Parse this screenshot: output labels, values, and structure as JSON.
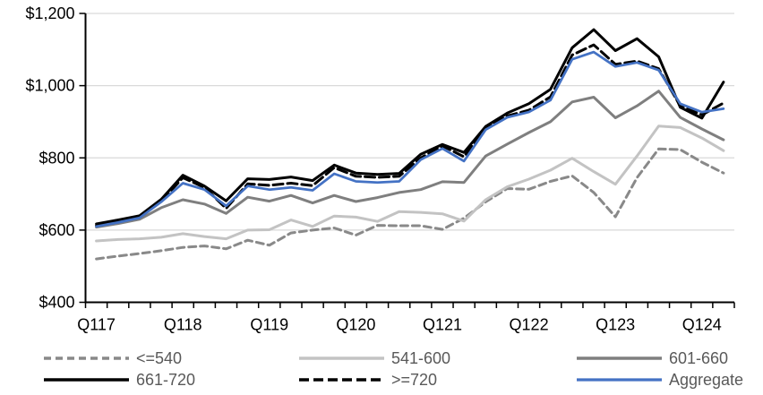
{
  "chart_data": {
    "type": "line",
    "title": "",
    "n_points": 30,
    "x_labels": [
      "Q117",
      "Q118",
      "Q119",
      "Q120",
      "Q121",
      "Q122",
      "Q123",
      "Q124"
    ],
    "x_label_positions": [
      0,
      4,
      8,
      12,
      16,
      20,
      24,
      28
    ],
    "x_note": "quarterly points, Q1 2017 through Q2 2024, labeled every 4th quarter",
    "y_axis": {
      "min": 400,
      "max": 1200,
      "step": 200,
      "tick_labels": [
        "$400",
        "$600",
        "$800",
        "$1,000",
        "$1,200"
      ]
    },
    "grid": "horizontal-only",
    "legend_position": "bottom",
    "series": [
      {
        "name": "<=540",
        "color": "#898989",
        "dash": "8 5",
        "width": 3,
        "values": [
          520,
          528,
          535,
          543,
          552,
          556,
          548,
          572,
          558,
          592,
          600,
          606,
          586,
          613,
          612,
          612,
          602,
          633,
          678,
          715,
          713,
          735,
          750,
          704,
          637,
          745,
          825,
          823,
          788,
          758
        ]
      },
      {
        "name": "541-600",
        "color": "#C3C3C3",
        "dash": null,
        "width": 3,
        "values": [
          570,
          574,
          576,
          580,
          590,
          582,
          576,
          600,
          601,
          628,
          610,
          639,
          636,
          624,
          651,
          649,
          645,
          625,
          684,
          720,
          741,
          766,
          799,
          762,
          727,
          805,
          888,
          884,
          855,
          820
        ]
      },
      {
        "name": "601-660",
        "color": "#7F7F7F",
        "dash": null,
        "width": 3,
        "values": [
          608,
          618,
          630,
          662,
          684,
          672,
          646,
          691,
          680,
          696,
          675,
          696,
          679,
          690,
          704,
          712,
          734,
          732,
          805,
          838,
          870,
          900,
          955,
          968,
          911,
          944,
          985,
          912,
          880,
          850
        ]
      },
      {
        "name": "661-720",
        "color": "#000000",
        "dash": null,
        "width": 3,
        "values": [
          617,
          628,
          640,
          685,
          752,
          722,
          681,
          742,
          740,
          747,
          737,
          780,
          758,
          754,
          757,
          810,
          837,
          815,
          887,
          924,
          950,
          990,
          1105,
          1155,
          1097,
          1130,
          1080,
          940,
          910,
          1010
        ]
      },
      {
        "name": ">=720",
        "color": "#000000",
        "dash": "11 5",
        "width": 3,
        "values": [
          612,
          624,
          636,
          680,
          745,
          718,
          660,
          728,
          724,
          730,
          723,
          773,
          749,
          746,
          749,
          800,
          833,
          803,
          883,
          916,
          932,
          969,
          1085,
          1113,
          1059,
          1068,
          1047,
          944,
          919,
          952
        ]
      },
      {
        "name": "Aggregate",
        "color": "#4472C4",
        "dash": null,
        "width": 2.75,
        "values": [
          610,
          621,
          634,
          678,
          730,
          712,
          667,
          722,
          712,
          718,
          710,
          756,
          735,
          732,
          735,
          795,
          826,
          791,
          878,
          912,
          927,
          960,
          1073,
          1093,
          1053,
          1064,
          1043,
          950,
          927,
          936
        ]
      }
    ],
    "legend_layout": {
      "rows": [
        [
          "<=540",
          "541-600",
          "601-660"
        ],
        [
          "661-720",
          ">=720",
          "Aggregate"
        ]
      ]
    }
  },
  "styles": {
    "grid_color": "#D9D9D9",
    "axis_color": "#000000",
    "tick_label_color": "#000000",
    "legend_text_color": "#595959",
    "accent_blue": "#4472C4"
  }
}
